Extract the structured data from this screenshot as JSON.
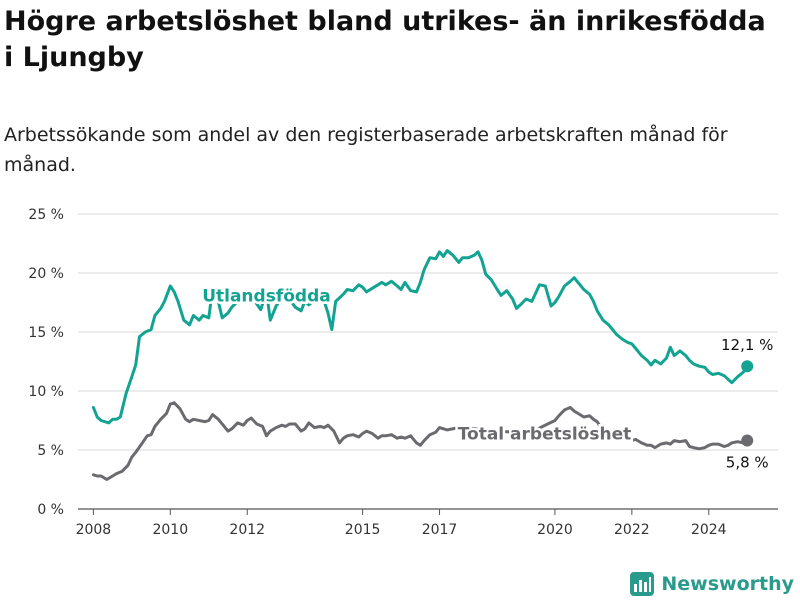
{
  "title": "Högre arbetslöshet bland utrikes- än inrikesfödda i Ljungby",
  "subtitle": "Arbetssökande som andel av den registerbaserade arbetskraften månad för månad.",
  "brand": "Newsworthy",
  "colors": {
    "foreign": "#12a393",
    "total": "#6b6b6f",
    "grid": "#d9d9d9",
    "brand": "#2a9a8c"
  },
  "chart_data": {
    "type": "line",
    "title": "Högre arbetslöshet bland utrikes- än inrikesfödda i Ljungby",
    "ylim": [
      0,
      25
    ],
    "xlim": [
      2007.6,
      2025.8
    ],
    "y_ticks": [
      0,
      5,
      10,
      15,
      20,
      25
    ],
    "y_tick_labels": [
      "0 %",
      "5 %",
      "10 %",
      "15 %",
      "20 %",
      "25 %"
    ],
    "x_ticks": [
      2008,
      2010,
      2012,
      2015,
      2017,
      2020,
      2022,
      2024
    ],
    "x_tick_labels": [
      "2008",
      "2010",
      "2012",
      "2015",
      "2017",
      "2020",
      "2022",
      "2024"
    ],
    "grid": true,
    "series": [
      {
        "name": "Utlandsfödda",
        "end_label": "12,1 %",
        "x": [
          2008.0,
          2008.1,
          2008.2,
          2008.4,
          2008.5,
          2008.6,
          2008.7,
          2008.85,
          2009.0,
          2009.1,
          2009.2,
          2009.35,
          2009.5,
          2009.6,
          2009.75,
          2009.85,
          2010.0,
          2010.1,
          2010.2,
          2010.35,
          2010.5,
          2010.6,
          2010.75,
          2010.85,
          2011.0,
          2011.1,
          2011.2,
          2011.35,
          2011.5,
          2011.6,
          2011.75,
          2011.85,
          2012.0,
          2012.1,
          2012.2,
          2012.35,
          2012.5,
          2012.6,
          2012.75,
          2012.9,
          2013.0,
          2013.1,
          2013.25,
          2013.4,
          2013.5,
          2013.6,
          2013.75,
          2013.9,
          2014.0,
          2014.1,
          2014.2,
          2014.3,
          2014.4,
          2014.5,
          2014.6,
          2014.75,
          2014.9,
          2015.0,
          2015.1,
          2015.25,
          2015.4,
          2015.5,
          2015.6,
          2015.75,
          2015.9,
          2016.0,
          2016.1,
          2016.25,
          2016.4,
          2016.5,
          2016.6,
          2016.75,
          2016.9,
          2017.0,
          2017.1,
          2017.2,
          2017.35,
          2017.5,
          2017.6,
          2017.75,
          2017.9,
          2018.0,
          2018.1,
          2018.2,
          2018.35,
          2018.5,
          2018.6,
          2018.75,
          2018.9,
          2019.0,
          2019.1,
          2019.25,
          2019.4,
          2019.5,
          2019.6,
          2019.75,
          2019.9,
          2020.0,
          2020.1,
          2020.25,
          2020.4,
          2020.5,
          2020.6,
          2020.75,
          2020.9,
          2021.0,
          2021.1,
          2021.25,
          2021.4,
          2021.5,
          2021.6,
          2021.75,
          2021.9,
          2022.0,
          2022.1,
          2022.25,
          2022.4,
          2022.5,
          2022.6,
          2022.75,
          2022.9,
          2023.0,
          2023.1,
          2023.25,
          2023.4,
          2023.5,
          2023.6,
          2023.75,
          2023.9,
          2024.0,
          2024.1,
          2024.25,
          2024.4,
          2024.5,
          2024.6,
          2024.75,
          2024.9,
          2025.0
        ],
        "values": [
          8.6,
          7.8,
          7.5,
          7.3,
          7.6,
          7.6,
          7.8,
          9.8,
          11.2,
          12.2,
          14.6,
          15.0,
          15.2,
          16.4,
          17.0,
          17.6,
          18.9,
          18.4,
          17.6,
          16.0,
          15.6,
          16.4,
          16.0,
          16.4,
          16.2,
          18.7,
          18.2,
          16.2,
          16.6,
          17.1,
          17.6,
          18.0,
          18.4,
          18.0,
          17.6,
          16.9,
          18.4,
          16.0,
          17.2,
          17.9,
          18.0,
          17.8,
          17.1,
          16.8,
          17.6,
          17.3,
          17.7,
          18.0,
          17.6,
          16.6,
          15.2,
          17.6,
          17.9,
          18.2,
          18.6,
          18.5,
          19.0,
          18.8,
          18.4,
          18.7,
          19.0,
          19.2,
          19.0,
          19.3,
          18.9,
          18.6,
          19.2,
          18.5,
          18.4,
          19.2,
          20.3,
          21.3,
          21.2,
          21.8,
          21.4,
          21.9,
          21.5,
          20.9,
          21.3,
          21.3,
          21.5,
          21.8,
          21.1,
          19.9,
          19.4,
          18.6,
          18.1,
          18.5,
          17.8,
          17.0,
          17.3,
          17.8,
          17.6,
          18.3,
          19.0,
          18.9,
          17.2,
          17.5,
          18.0,
          18.9,
          19.3,
          19.6,
          19.2,
          18.6,
          18.2,
          17.6,
          16.8,
          16.0,
          15.6,
          15.2,
          14.8,
          14.4,
          14.1,
          14.0,
          13.6,
          13.0,
          12.6,
          12.2,
          12.6,
          12.3,
          12.8,
          13.7,
          13.0,
          13.4,
          13.0,
          12.6,
          12.3,
          12.1,
          12.0,
          11.6,
          11.4,
          11.5,
          11.3,
          11.0,
          10.7,
          11.2,
          11.6,
          12.1
        ]
      },
      {
        "name": "Total arbetslöshet",
        "end_label": "5,8 %",
        "x": [
          2008.0,
          2008.1,
          2008.2,
          2008.35,
          2008.5,
          2008.6,
          2008.75,
          2008.9,
          2009.0,
          2009.1,
          2009.25,
          2009.4,
          2009.5,
          2009.6,
          2009.75,
          2009.9,
          2010.0,
          2010.1,
          2010.25,
          2010.4,
          2010.5,
          2010.6,
          2010.75,
          2010.9,
          2011.0,
          2011.1,
          2011.25,
          2011.4,
          2011.5,
          2011.6,
          2011.75,
          2011.9,
          2012.0,
          2012.1,
          2012.25,
          2012.4,
          2012.5,
          2012.6,
          2012.75,
          2012.9,
          2013.0,
          2013.1,
          2013.25,
          2013.4,
          2013.5,
          2013.6,
          2013.75,
          2013.9,
          2014.0,
          2014.1,
          2014.25,
          2014.4,
          2014.5,
          2014.6,
          2014.75,
          2014.9,
          2015.0,
          2015.1,
          2015.25,
          2015.4,
          2015.5,
          2015.6,
          2015.75,
          2015.9,
          2016.0,
          2016.1,
          2016.25,
          2016.4,
          2016.5,
          2016.6,
          2016.75,
          2016.9,
          2017.0,
          2017.2,
          2017.5,
          2018.0,
          2018.5,
          2019.0,
          2019.5,
          2020.0,
          2020.1,
          2020.25,
          2020.4,
          2020.5,
          2020.6,
          2020.75,
          2020.9,
          2021.0,
          2021.1,
          2021.25,
          2021.4,
          2021.5,
          2021.6,
          2021.75,
          2021.9,
          2022.0,
          2022.1,
          2022.25,
          2022.4,
          2022.5,
          2022.6,
          2022.75,
          2022.9,
          2023.0,
          2023.1,
          2023.25,
          2023.4,
          2023.5,
          2023.6,
          2023.75,
          2023.9,
          2024.0,
          2024.1,
          2024.25,
          2024.4,
          2024.5,
          2024.6,
          2024.75,
          2024.9,
          2025.0
        ],
        "values": [
          2.9,
          2.8,
          2.8,
          2.5,
          2.8,
          3.0,
          3.2,
          3.7,
          4.4,
          4.8,
          5.5,
          6.2,
          6.3,
          7.0,
          7.6,
          8.1,
          8.9,
          9.0,
          8.5,
          7.6,
          7.4,
          7.6,
          7.5,
          7.4,
          7.5,
          8.0,
          7.6,
          7.0,
          6.6,
          6.8,
          7.3,
          7.1,
          7.5,
          7.7,
          7.2,
          7.0,
          6.2,
          6.6,
          6.9,
          7.1,
          7.0,
          7.2,
          7.2,
          6.6,
          6.8,
          7.3,
          6.9,
          7.0,
          6.9,
          7.1,
          6.6,
          5.6,
          6.0,
          6.2,
          6.3,
          6.1,
          6.4,
          6.6,
          6.4,
          6.0,
          6.2,
          6.2,
          6.3,
          6.0,
          6.1,
          6.0,
          6.2,
          5.6,
          5.4,
          5.8,
          6.3,
          6.5,
          6.9,
          6.7,
          6.9,
          6.8,
          6.6,
          6.5,
          6.7,
          7.5,
          7.9,
          8.4,
          8.6,
          8.3,
          8.1,
          7.8,
          7.9,
          7.6,
          7.4,
          6.6,
          6.3,
          6.0,
          6.1,
          6.0,
          5.9,
          5.8,
          5.9,
          5.6,
          5.4,
          5.4,
          5.2,
          5.5,
          5.6,
          5.5,
          5.8,
          5.7,
          5.8,
          5.3,
          5.2,
          5.1,
          5.2,
          5.4,
          5.5,
          5.5,
          5.3,
          5.4,
          5.6,
          5.7,
          5.6,
          5.8
        ]
      }
    ]
  }
}
